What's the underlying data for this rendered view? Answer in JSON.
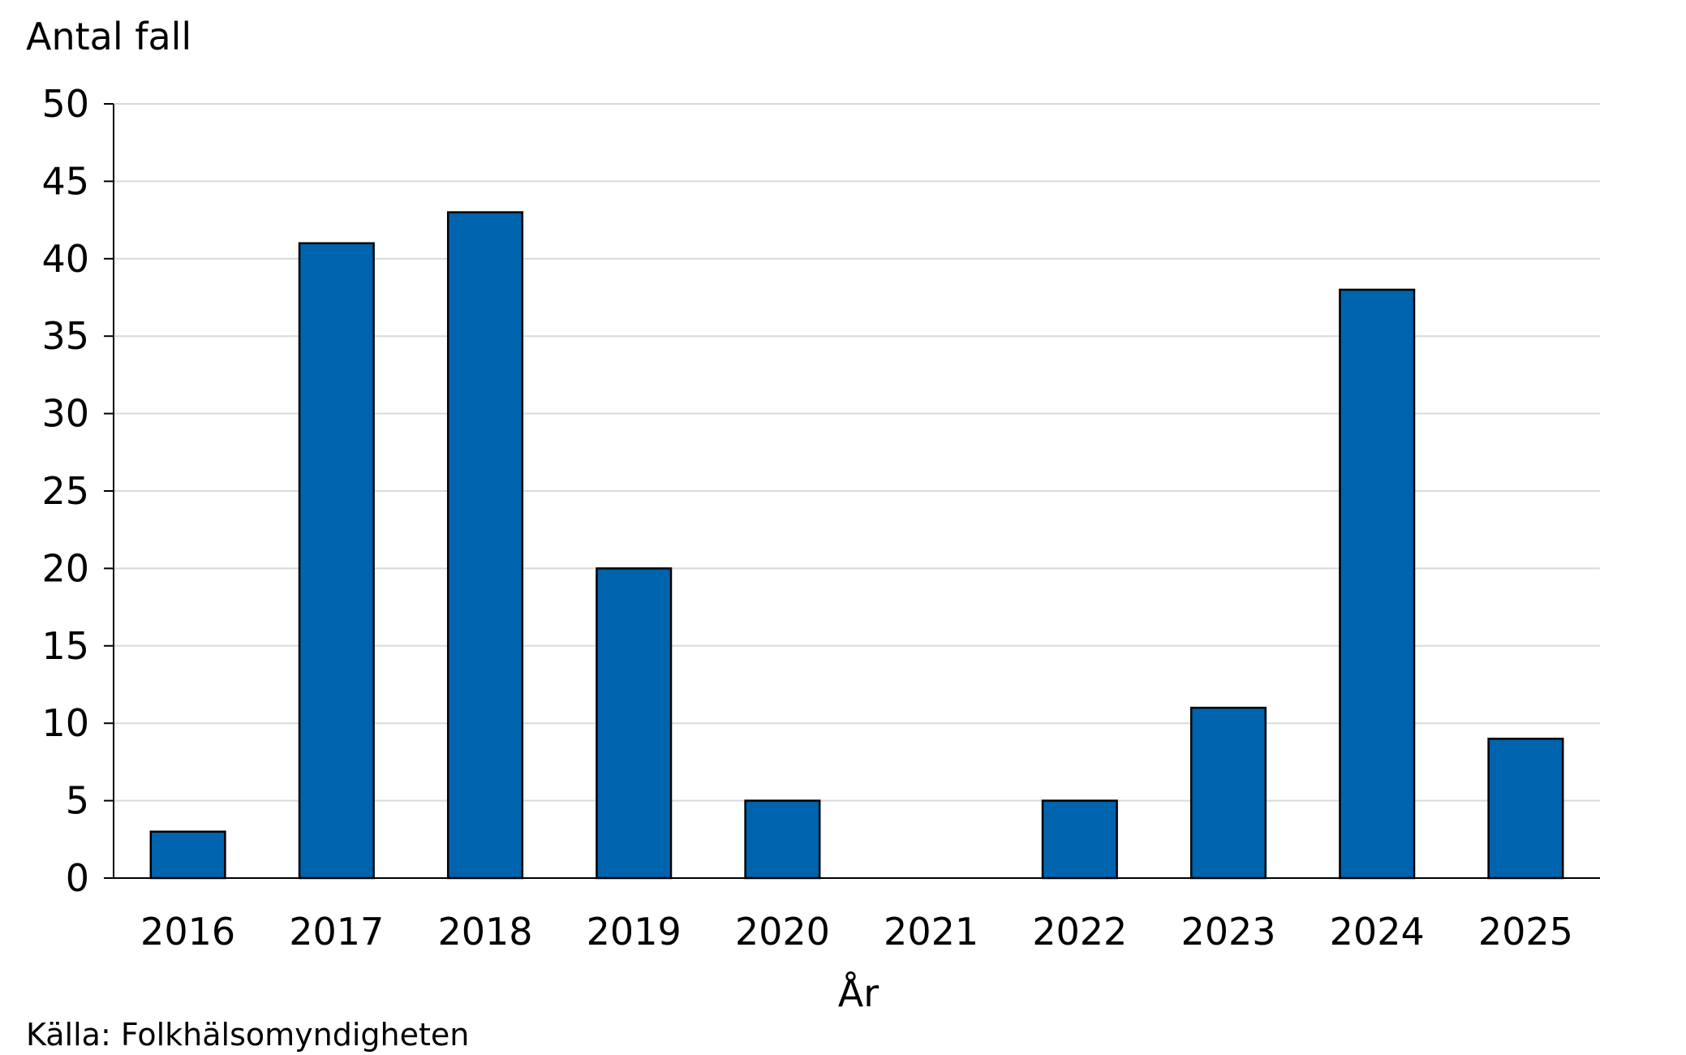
{
  "chart_data": {
    "type": "bar",
    "ylabel": "Antal fall",
    "xlabel": "År",
    "source": "Källa: Folkhälsomyndigheten",
    "categories": [
      "2016",
      "2017",
      "2018",
      "2019",
      "2020",
      "2021",
      "2022",
      "2023",
      "2024",
      "2025"
    ],
    "values": [
      3,
      41,
      43,
      20,
      5,
      0,
      5,
      11,
      38,
      9
    ],
    "ylim": [
      0,
      50
    ],
    "yticks": [
      0,
      5,
      10,
      15,
      20,
      25,
      30,
      35,
      40,
      45,
      50
    ],
    "grid": true,
    "bar_color": "#0063ad",
    "grid_color": "#d9d9d9"
  }
}
